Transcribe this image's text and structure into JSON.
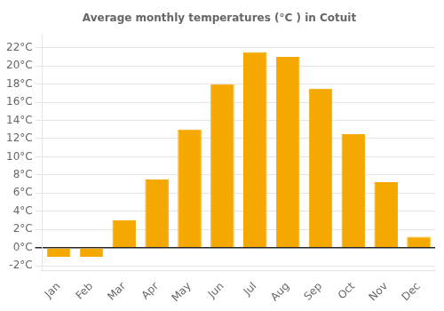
{
  "chart_data": {
    "type": "bar",
    "title": "Average monthly temperatures (°C ) in Cotuit",
    "categories": [
      "Jan",
      "Feb",
      "Mar",
      "Apr",
      "May",
      "Jun",
      "Jul",
      "Aug",
      "Sep",
      "Oct",
      "Nov",
      "Dec"
    ],
    "values": [
      -1.0,
      -1.0,
      3.0,
      7.5,
      13.0,
      18.0,
      21.5,
      21.0,
      17.5,
      12.5,
      7.2,
      1.2
    ],
    "color": "#F5A800",
    "ylim": [
      -2.5,
      23.5
    ],
    "yticks": [
      {
        "value": -2,
        "label": "-2°C"
      },
      {
        "value": 0,
        "label": "0°C"
      },
      {
        "value": 2,
        "label": "2°C"
      },
      {
        "value": 4,
        "label": "4°C"
      },
      {
        "value": 6,
        "label": "6°C"
      },
      {
        "value": 8,
        "label": "8°C"
      },
      {
        "value": 10,
        "label": "10°C"
      },
      {
        "value": 12,
        "label": "12°C"
      },
      {
        "value": 14,
        "label": "14°C"
      },
      {
        "value": 16,
        "label": "16°C"
      },
      {
        "value": 18,
        "label": "18°C"
      },
      {
        "value": 20,
        "label": "20°C"
      },
      {
        "value": 22,
        "label": "22°C"
      }
    ],
    "grid": true
  }
}
